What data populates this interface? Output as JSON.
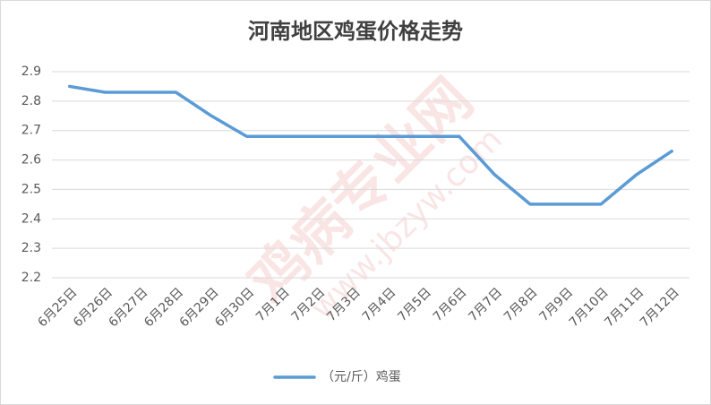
{
  "chart_data": {
    "type": "line",
    "title": "河南地区鸡蛋价格走势",
    "watermark": "鸡病专业网",
    "watermark_url": "www.jbzyw.com",
    "categories": [
      "6月25日",
      "6月26日",
      "6月27日",
      "6月28日",
      "6月29日",
      "6月30日",
      "7月1日",
      "7月2日",
      "7月3日",
      "7月4日",
      "7月5日",
      "7月6日",
      "7月7日",
      "7月8日",
      "7月9日",
      "7月10日",
      "7月11日",
      "7月12日"
    ],
    "series": [
      {
        "name": "（元/斤）鸡蛋",
        "color": "#5b9bd5",
        "values": [
          2.85,
          2.83,
          2.83,
          2.83,
          2.75,
          2.68,
          2.68,
          2.68,
          2.68,
          2.68,
          2.68,
          2.68,
          2.55,
          2.45,
          2.45,
          2.45,
          2.55,
          2.63
        ]
      }
    ],
    "ylim": [
      2.2,
      2.9
    ],
    "yticks": [
      2.2,
      2.3,
      2.4,
      2.5,
      2.6,
      2.7,
      2.8,
      2.9
    ],
    "grid": true,
    "legend": "bottom"
  }
}
